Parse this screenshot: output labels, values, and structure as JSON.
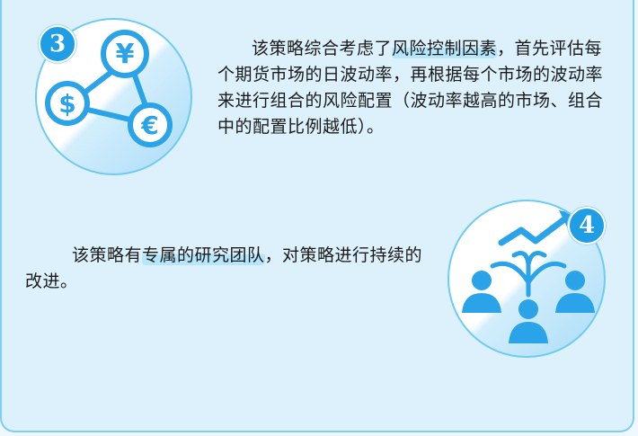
{
  "section3": {
    "badge": "3",
    "icons": [
      "yuan-icon",
      "dollar-icon",
      "euro-icon"
    ],
    "text_before": "该策略综合考虑了",
    "text_highlight": "风险控制因素",
    "text_after": "，首先评估每个期货市场的日波动率，再根据每个市场的波动率来进行组合的风险配置（波动率越高的市场、组合中的配置比例越低）。"
  },
  "section4": {
    "badge": "4",
    "icons": [
      "trend-arrow-icon",
      "team-people-icon"
    ],
    "text_before": "该策略有",
    "text_highlight": "专属的研究团队",
    "text_after": "，对策略进行持续的改进。"
  },
  "colors": {
    "accent": "#1f9ee6",
    "border": "#6ecbf2",
    "panel_bg": "#ddf1fc",
    "highlight": "#b6e6fb"
  }
}
